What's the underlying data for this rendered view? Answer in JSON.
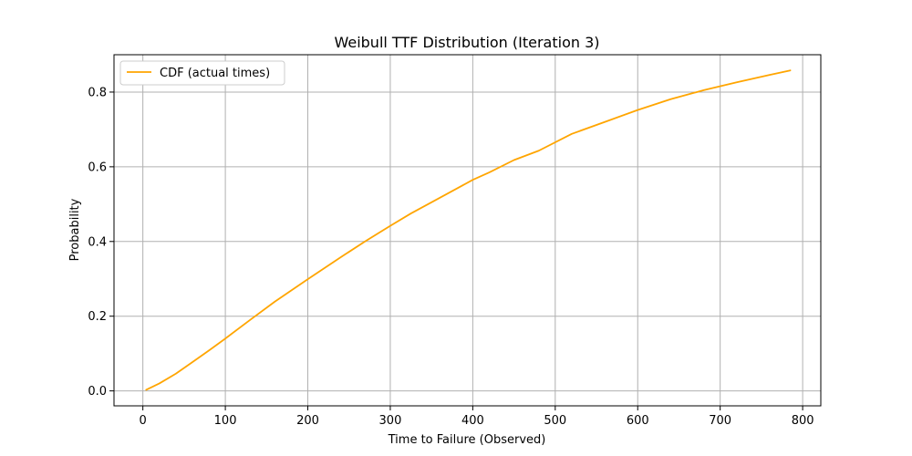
{
  "chart_data": {
    "type": "line",
    "title": "Weibull TTF Distribution (Iteration 3)",
    "xlabel": "Time to Failure (Observed)",
    "ylabel": "Probability",
    "xlim": [
      -35,
      822
    ],
    "ylim": [
      -0.04,
      0.9
    ],
    "xticks": [
      0,
      100,
      200,
      300,
      400,
      500,
      600,
      700,
      800
    ],
    "yticks": [
      0.0,
      0.2,
      0.4,
      0.6,
      0.8
    ],
    "ytick_labels": [
      "0.0",
      "0.2",
      "0.4",
      "0.6",
      "0.8"
    ],
    "grid": true,
    "legend_position": "upper-left",
    "series": [
      {
        "name": "CDF (actual times)",
        "color": "#ffa500",
        "x": [
          4,
          20,
          40,
          60,
          80,
          100,
          130,
          160,
          200,
          240,
          270,
          300,
          325,
          350,
          380,
          400,
          420,
          450,
          480,
          520,
          560,
          600,
          640,
          680,
          720,
          760,
          785
        ],
        "y": [
          0.003,
          0.02,
          0.046,
          0.077,
          0.108,
          0.14,
          0.19,
          0.239,
          0.299,
          0.358,
          0.401,
          0.442,
          0.475,
          0.505,
          0.541,
          0.565,
          0.585,
          0.618,
          0.643,
          0.688,
          0.72,
          0.752,
          0.781,
          0.805,
          0.826,
          0.846,
          0.858
        ]
      }
    ]
  }
}
